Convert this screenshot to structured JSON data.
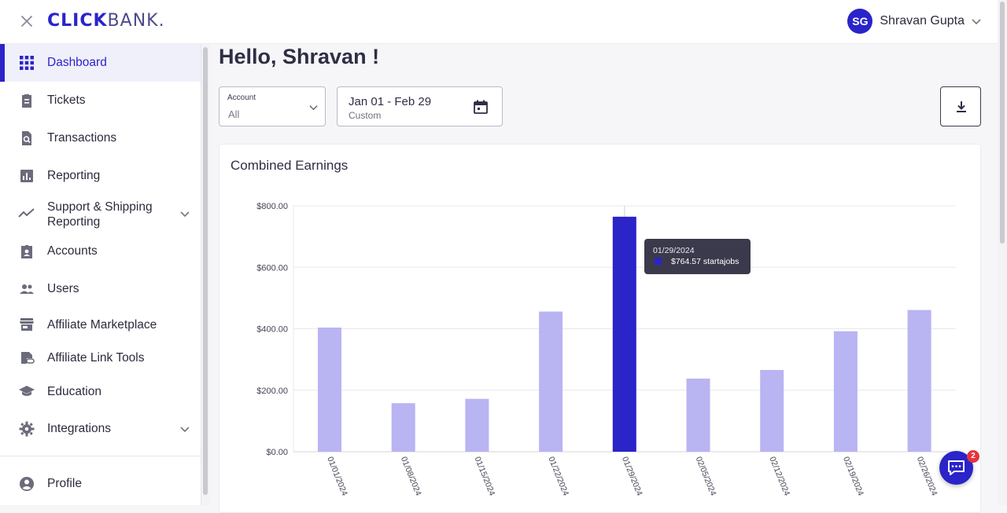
{
  "app": {
    "logo_part1": "CLICK",
    "logo_part2": "BANK."
  },
  "user": {
    "initials": "SG",
    "name": "Shravan Gupta"
  },
  "sidebar": {
    "items": [
      {
        "label": "Dashboard",
        "icon": "dashboard-grid-icon",
        "active": true
      },
      {
        "label": "Tickets",
        "icon": "clipboard-icon"
      },
      {
        "label": "Transactions",
        "icon": "document-search-icon"
      },
      {
        "label": "Reporting",
        "icon": "bar-chart-icon"
      },
      {
        "label": "Support & Shipping Reporting",
        "label_line1": "Support & Shipping",
        "label_line2": "Reporting",
        "icon": "trend-line-icon",
        "expandable": true
      },
      {
        "label": "Accounts",
        "icon": "badge-icon"
      },
      {
        "label": "Users",
        "icon": "users-icon"
      },
      {
        "label": "Affiliate Marketplace",
        "icon": "storefront-icon"
      },
      {
        "label": "Affiliate Link Tools",
        "icon": "link-tools-icon"
      },
      {
        "label": "Education",
        "icon": "graduation-cap-icon"
      },
      {
        "label": "Integrations",
        "icon": "gear-icon",
        "expandable": true
      },
      {
        "label": "Profile",
        "icon": "profile-icon"
      }
    ]
  },
  "main": {
    "greeting": "Hello, Shravan !",
    "account_filter": {
      "caption": "Account",
      "value": "All"
    },
    "date_filter": {
      "range": "Jan 01 - Feb 29",
      "mode": "Custom"
    },
    "card_title": "Combined Earnings"
  },
  "tooltip": {
    "date": "01/29/2024",
    "value": "$764.57 startajobs"
  },
  "chat": {
    "badge_count": "2"
  },
  "colors": {
    "accent": "#2a24c9",
    "bar_muted": "#b9b4f2"
  },
  "chart_data": {
    "type": "bar",
    "title": "Combined Earnings",
    "categories": [
      "01/01/2024",
      "01/08/2024",
      "01/15/2024",
      "01/22/2024",
      "01/29/2024",
      "02/05/2024",
      "02/12/2024",
      "02/19/2024",
      "02/26/2024"
    ],
    "series": [
      {
        "values": [
          404,
          158,
          172,
          456,
          764.57,
          238,
          266,
          392,
          461
        ]
      }
    ],
    "highlighted_category": "01/29/2024",
    "y_ticks": [
      "$0.00",
      "$200.00",
      "$400.00",
      "$600.00",
      "$800.00"
    ],
    "ylim": [
      0,
      800
    ],
    "grid": true
  }
}
